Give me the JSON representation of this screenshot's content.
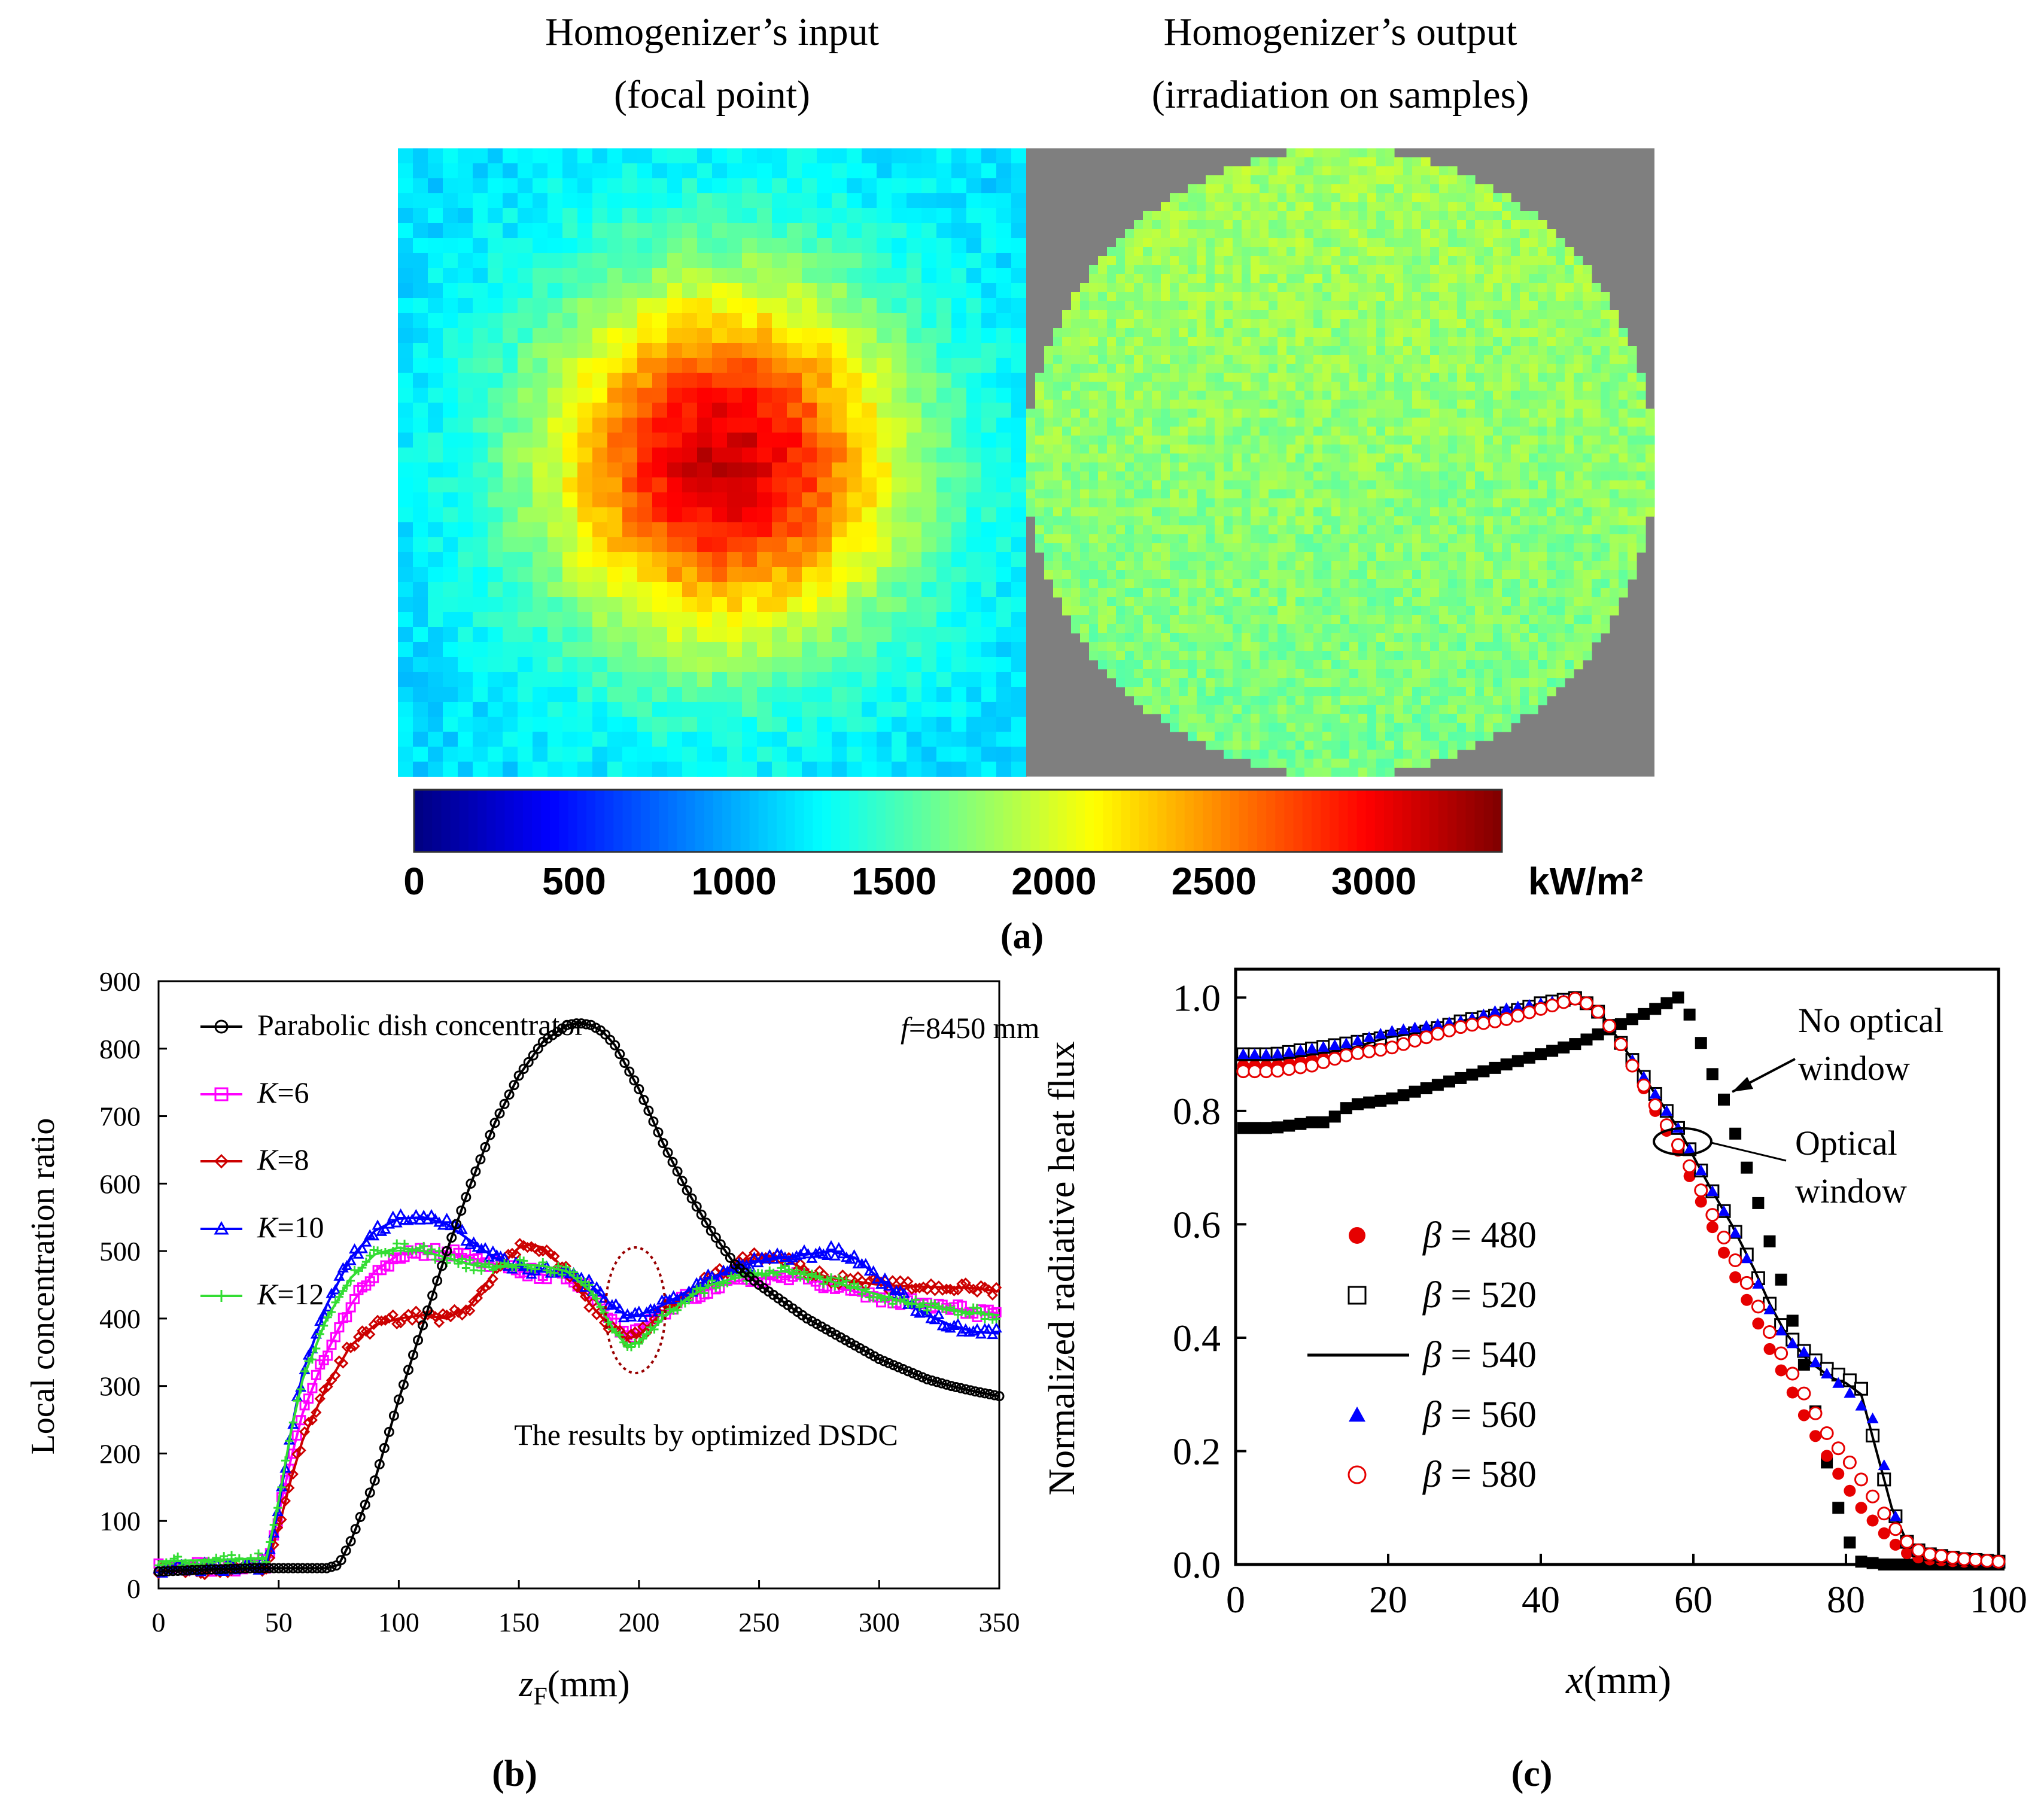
{
  "panel_a": {
    "left_title_1": "Homogenizer’s input",
    "left_title_2": "(focal point)",
    "right_title_1": "Homogenizer’s output",
    "right_title_2": "(irradiation on samples)",
    "colorbar_ticks": [
      "0",
      "500",
      "1000",
      "1500",
      "2000",
      "2500",
      "3000"
    ],
    "colorbar_unit": "kW/m²",
    "label": "(a)",
    "colormap": [
      "#00007f",
      "#0000ff",
      "#007fff",
      "#00ffff",
      "#7fff7f",
      "#ffff00",
      "#ff7f00",
      "#ff0000",
      "#7f0000"
    ]
  },
  "panel_b": {
    "label": "(b)",
    "annotation": "The results by optimized DSDC",
    "f_label": "=8450 mm",
    "f_symbol": "f"
  },
  "panel_c": {
    "label": "(c)",
    "note_no_window_1": "No optical",
    "note_no_window_2": "window",
    "note_window_1": "Optical",
    "note_window_2": "window"
  },
  "chart_data": [
    {
      "type": "heatmap",
      "title": "Homogenizer’s input (focal point)",
      "unit": "kW/m²",
      "colorbar_range": [
        0,
        3400
      ],
      "peak_value": 3150,
      "edge_value": 1150
    },
    {
      "type": "heatmap",
      "title": "Homogenizer’s output (irradiation on samples)",
      "unit": "kW/m²",
      "colorbar_range": [
        0,
        3400
      ],
      "mean_value": 1750
    },
    {
      "type": "line",
      "xlabel_main": "z",
      "xlabel_sub": "F",
      "xlabel_unit": "(mm)",
      "ylabel": "Local concentration ratio",
      "xlim": [
        0,
        350
      ],
      "ylim": [
        0,
        900
      ],
      "xticks": [
        "0",
        "50",
        "100",
        "150",
        "200",
        "250",
        "300",
        "350"
      ],
      "yticks": [
        "0",
        "100",
        "200",
        "300",
        "400",
        "500",
        "600",
        "700",
        "800",
        "900"
      ],
      "series": [
        {
          "name": "Parabolic dish concentrator",
          "italic_prefix": "",
          "suffix": "Parabolic dish concentrator",
          "color": "#000000",
          "marker": "circle",
          "x": [
            0,
            20,
            40,
            60,
            70,
            75,
            80,
            90,
            100,
            110,
            120,
            130,
            140,
            150,
            160,
            170,
            175,
            180,
            185,
            190,
            200,
            210,
            220,
            230,
            240,
            250,
            260,
            270,
            280,
            290,
            300,
            310,
            320,
            330,
            340,
            350
          ],
          "y": [
            25,
            28,
            30,
            30,
            30,
            35,
            70,
            160,
            280,
            390,
            500,
            600,
            690,
            760,
            810,
            835,
            838,
            835,
            825,
            805,
            740,
            660,
            590,
            530,
            480,
            450,
            425,
            400,
            380,
            360,
            340,
            325,
            310,
            300,
            292,
            285
          ]
        },
        {
          "name": "K=6",
          "italic_prefix": "K",
          "suffix": "=6",
          "color": "#ff00ff",
          "marker": "square",
          "x": [
            0,
            20,
            40,
            45,
            50,
            55,
            60,
            70,
            80,
            90,
            100,
            110,
            120,
            130,
            140,
            150,
            160,
            170,
            180,
            190,
            195,
            200,
            210,
            220,
            230,
            240,
            250,
            260,
            270,
            280,
            290,
            300,
            310,
            320,
            330,
            340,
            350
          ],
          "y": [
            30,
            32,
            34,
            36,
            110,
            190,
            260,
            350,
            420,
            470,
            495,
            500,
            498,
            490,
            480,
            470,
            465,
            460,
            440,
            390,
            370,
            380,
            410,
            430,
            445,
            455,
            460,
            462,
            460,
            450,
            440,
            430,
            425,
            420,
            415,
            410,
            408
          ]
        },
        {
          "name": "K=8",
          "italic_prefix": "K",
          "suffix": "=8",
          "color": "#cc0000",
          "marker": "diamond",
          "x": [
            0,
            20,
            40,
            45,
            50,
            55,
            60,
            70,
            80,
            90,
            100,
            110,
            120,
            130,
            140,
            150,
            155,
            160,
            170,
            180,
            190,
            195,
            200,
            210,
            220,
            230,
            240,
            250,
            260,
            270,
            280,
            290,
            300,
            310,
            320,
            330,
            340,
            350
          ],
          "y": [
            25,
            27,
            30,
            33,
            90,
            160,
            220,
            300,
            360,
            390,
            400,
            405,
            400,
            420,
            470,
            505,
            510,
            505,
            470,
            420,
            380,
            370,
            375,
            410,
            440,
            460,
            480,
            495,
            490,
            470,
            460,
            455,
            450,
            448,
            447,
            446,
            445,
            440
          ]
        },
        {
          "name": "K=10",
          "italic_prefix": "K",
          "suffix": "=10",
          "color": "#0000ff",
          "marker": "triangle",
          "x": [
            0,
            20,
            40,
            45,
            50,
            55,
            60,
            70,
            80,
            90,
            100,
            110,
            120,
            130,
            140,
            150,
            160,
            170,
            180,
            190,
            195,
            200,
            210,
            220,
            230,
            240,
            250,
            260,
            270,
            280,
            290,
            300,
            310,
            320,
            330,
            340,
            350
          ],
          "y": [
            30,
            32,
            34,
            36,
            120,
            230,
            320,
            420,
            490,
            530,
            548,
            550,
            540,
            515,
            490,
            475,
            470,
            465,
            450,
            415,
            405,
            405,
            420,
            440,
            460,
            475,
            485,
            490,
            495,
            500,
            490,
            460,
            430,
            405,
            390,
            380,
            378
          ]
        },
        {
          "name": "K=12",
          "italic_prefix": "K",
          "suffix": "=12",
          "color": "#33dd33",
          "marker": "plus",
          "x": [
            0,
            20,
            40,
            45,
            50,
            55,
            60,
            70,
            80,
            90,
            100,
            110,
            120,
            130,
            140,
            150,
            160,
            170,
            180,
            190,
            195,
            200,
            210,
            220,
            230,
            240,
            250,
            260,
            270,
            280,
            290,
            300,
            310,
            320,
            330,
            340,
            350
          ],
          "y": [
            40,
            42,
            44,
            46,
            130,
            230,
            310,
            400,
            460,
            495,
            505,
            500,
            490,
            480,
            475,
            480,
            478,
            470,
            440,
            380,
            360,
            365,
            400,
            430,
            450,
            460,
            465,
            470,
            465,
            455,
            445,
            435,
            425,
            418,
            412,
            408,
            405
          ]
        }
      ]
    },
    {
      "type": "scatter",
      "xlabel_main": "x",
      "xlabel_unit": "(mm)",
      "ylabel": "Normalized radiative heat flux",
      "xlim": [
        0,
        100
      ],
      "ylim": [
        0,
        1.05
      ],
      "xticks": [
        "0",
        "20",
        "40",
        "60",
        "80",
        "100"
      ],
      "yticks": [
        "0.0",
        "0.2",
        "0.4",
        "0.6",
        "0.8",
        "1.0"
      ],
      "series": [
        {
          "name": "No optical window",
          "color": "#000000",
          "marker": "filled-square",
          "legend": false,
          "x": [
            0,
            5,
            10,
            12,
            15,
            20,
            25,
            30,
            35,
            40,
            45,
            50,
            55,
            58,
            60,
            62,
            64,
            66,
            68,
            70,
            72,
            74,
            76,
            78,
            80,
            82,
            85,
            90,
            95,
            100
          ],
          "y": [
            0.77,
            0.77,
            0.78,
            0.78,
            0.81,
            0.82,
            0.84,
            0.86,
            0.88,
            0.9,
            0.92,
            0.95,
            0.98,
            1.0,
            0.96,
            0.88,
            0.82,
            0.74,
            0.66,
            0.57,
            0.48,
            0.38,
            0.27,
            0.15,
            0.05,
            0.005,
            0.0,
            0.0,
            0.0,
            0.0
          ]
        },
        {
          "name": "β = 480",
          "greek": "β",
          "value": "= 480",
          "color": "#e60000",
          "marker": "filled-circle",
          "legend": true,
          "x": [
            0,
            5,
            10,
            15,
            20,
            25,
            30,
            35,
            40,
            45,
            48,
            50,
            52,
            55,
            58,
            60,
            62,
            65,
            68,
            70,
            72,
            75,
            78,
            80,
            82,
            84,
            86,
            88,
            90,
            95,
            100
          ],
          "y": [
            0.88,
            0.88,
            0.89,
            0.9,
            0.92,
            0.93,
            0.95,
            0.97,
            0.98,
            1.0,
            0.97,
            0.93,
            0.88,
            0.8,
            0.73,
            0.67,
            0.61,
            0.52,
            0.44,
            0.38,
            0.33,
            0.25,
            0.18,
            0.14,
            0.1,
            0.07,
            0.04,
            0.02,
            0.01,
            0.005,
            0.005
          ]
        },
        {
          "name": "β = 520",
          "greek": "β",
          "value": "= 520",
          "color": "#000000",
          "marker": "open-square",
          "legend": true,
          "x": [
            0,
            5,
            10,
            15,
            20,
            25,
            30,
            35,
            40,
            45,
            48,
            50,
            52,
            55,
            58,
            60,
            62,
            65,
            68,
            70,
            72,
            75,
            78,
            80,
            82,
            84,
            86,
            88,
            90,
            95,
            100
          ],
          "y": [
            0.9,
            0.9,
            0.91,
            0.92,
            0.93,
            0.94,
            0.96,
            0.97,
            0.99,
            1.0,
            0.97,
            0.93,
            0.89,
            0.83,
            0.77,
            0.72,
            0.67,
            0.6,
            0.52,
            0.46,
            0.41,
            0.37,
            0.34,
            0.33,
            0.31,
            0.2,
            0.1,
            0.04,
            0.02,
            0.01,
            0.005
          ]
        },
        {
          "name": "β = 540",
          "greek": "β",
          "value": "= 540",
          "color": "#000000",
          "marker": "line",
          "legend": true,
          "x": [
            0,
            5,
            10,
            15,
            20,
            25,
            30,
            35,
            40,
            45,
            48,
            50,
            52,
            55,
            58,
            60,
            62,
            65,
            68,
            70,
            72,
            75,
            78,
            80,
            82,
            84,
            86,
            88,
            90,
            95,
            100
          ],
          "y": [
            0.89,
            0.89,
            0.9,
            0.91,
            0.93,
            0.94,
            0.96,
            0.97,
            0.99,
            1.0,
            0.97,
            0.93,
            0.89,
            0.83,
            0.77,
            0.72,
            0.67,
            0.6,
            0.52,
            0.46,
            0.41,
            0.36,
            0.33,
            0.32,
            0.3,
            0.2,
            0.1,
            0.04,
            0.02,
            0.01,
            0.005
          ]
        },
        {
          "name": "β = 560",
          "greek": "β",
          "value": "= 560",
          "color": "#0000ff",
          "marker": "filled-triangle",
          "legend": true,
          "x": [
            0,
            5,
            10,
            15,
            20,
            25,
            30,
            35,
            40,
            45,
            48,
            50,
            52,
            55,
            58,
            60,
            62,
            65,
            68,
            70,
            72,
            75,
            78,
            80,
            82,
            84,
            86,
            88,
            90,
            95,
            100
          ],
          "y": [
            0.9,
            0.9,
            0.91,
            0.92,
            0.94,
            0.95,
            0.96,
            0.98,
            0.99,
            1.0,
            0.97,
            0.93,
            0.89,
            0.83,
            0.77,
            0.72,
            0.67,
            0.6,
            0.51,
            0.45,
            0.4,
            0.37,
            0.33,
            0.31,
            0.28,
            0.25,
            0.1,
            0.04,
            0.02,
            0.01,
            0.005
          ]
        },
        {
          "name": "β = 580",
          "greek": "β",
          "value": "= 580",
          "color": "#e60000",
          "marker": "open-circle",
          "legend": true,
          "x": [
            0,
            5,
            10,
            15,
            20,
            25,
            30,
            35,
            40,
            45,
            48,
            50,
            52,
            55,
            58,
            60,
            62,
            65,
            68,
            70,
            72,
            75,
            78,
            80,
            82,
            84,
            86,
            88,
            90,
            95,
            100
          ],
          "y": [
            0.87,
            0.87,
            0.88,
            0.9,
            0.91,
            0.93,
            0.95,
            0.96,
            0.98,
            1.0,
            0.97,
            0.93,
            0.88,
            0.81,
            0.74,
            0.69,
            0.63,
            0.55,
            0.47,
            0.41,
            0.36,
            0.29,
            0.22,
            0.19,
            0.15,
            0.11,
            0.07,
            0.04,
            0.02,
            0.01,
            0.005
          ]
        }
      ]
    }
  ]
}
